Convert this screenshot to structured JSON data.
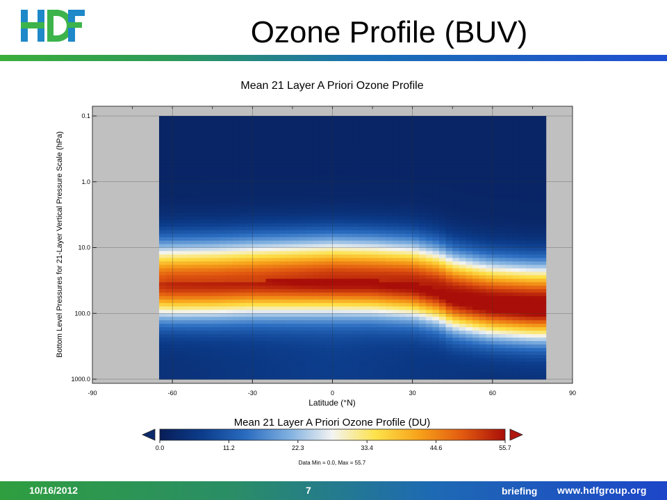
{
  "slide": {
    "title": "Ozone Profile (BUV)",
    "logo_text": "HDF",
    "colors": {
      "logo_blue": "#1e88c8",
      "logo_green": "#3cb44b",
      "rule_start": "#3aae3a",
      "rule_end": "#1f4fd0"
    }
  },
  "footer": {
    "date": "10/16/2012",
    "page": "7",
    "label": "briefing",
    "url": "www.hdfgroup.org"
  },
  "chart_data": {
    "type": "heatmap",
    "title": "Mean 21 Layer A Priori Ozone Profile",
    "xlabel": "Latitude (°N)",
    "ylabel": "Bottom Level Pressures for 21-Layer Vertical Pressure Scale (hPa)",
    "xlim": [
      -90,
      90
    ],
    "ylim": [
      1000.0,
      0.1
    ],
    "yscale": "log",
    "y_inverted": true,
    "x_ticks": [
      "-90",
      "-60",
      "-30",
      "0",
      "30",
      "60",
      "90"
    ],
    "y_ticks": [
      "0.1",
      "1.0",
      "10.0",
      "100.0",
      "1000.0"
    ],
    "grid": true,
    "data_lat_range": [
      -65,
      80
    ],
    "missing_color": "#c0c0c0",
    "latitudes": [
      -65,
      -60,
      -45,
      -30,
      -15,
      0,
      15,
      30,
      40,
      45,
      60,
      75,
      80
    ],
    "max_pressure_hPa": [
      35,
      35,
      34,
      32,
      31,
      30,
      31,
      34,
      42,
      52,
      68,
      75,
      75
    ],
    "max_value_DU": [
      48,
      49,
      49,
      49,
      50,
      51,
      51,
      52,
      53,
      54,
      55,
      55.7,
      55.7
    ],
    "colorbar": {
      "title": "Mean 21 Layer A Priori Ozone Profile (DU)",
      "ticks": [
        "0.0",
        "11.2",
        "22.3",
        "33.4",
        "44.6",
        "55.7"
      ],
      "colors": [
        "#081d58",
        "#0c3d8c",
        "#2a6cc0",
        "#7fb0e0",
        "#f4f4f2",
        "#fde24a",
        "#f7a21a",
        "#e25a10",
        "#a90f08"
      ],
      "under_color": "#0b2a6b",
      "over_color": "#b0170e"
    },
    "footnote": "Data Min = 0.0, Max = 55.7"
  }
}
